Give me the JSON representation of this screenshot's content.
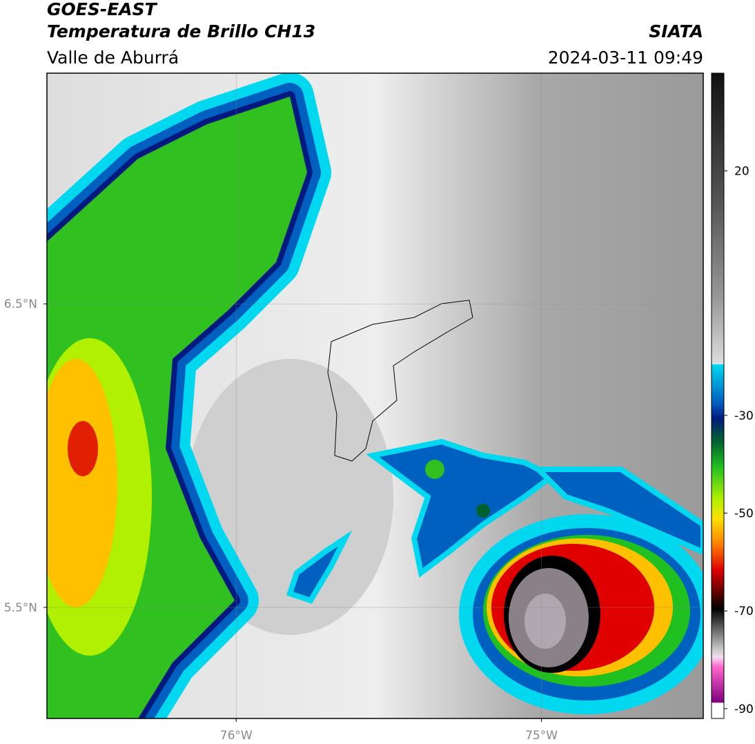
{
  "header": {
    "title": "GOES-EAST",
    "product": "Temperatura de Brillo CH13",
    "region": "Valle de Aburrá",
    "source": "SIATA",
    "timestamp": "2024-03-11 09:49"
  },
  "map": {
    "latlim": [
      5.134,
      7.26
    ],
    "lonlim": [
      -76.62,
      -74.47
    ],
    "lat_ticks": [
      {
        "value": 6.5,
        "label": "6.5°N"
      },
      {
        "value": 5.5,
        "label": "5.5°N"
      }
    ],
    "lon_ticks": [
      {
        "value": -76,
        "label": "76°W"
      },
      {
        "value": -75,
        "label": "75°W"
      }
    ]
  },
  "colorbar": {
    "lim": [
      -92,
      40
    ],
    "ticks": [
      20,
      -30,
      -50,
      -70,
      -90
    ]
  }
}
